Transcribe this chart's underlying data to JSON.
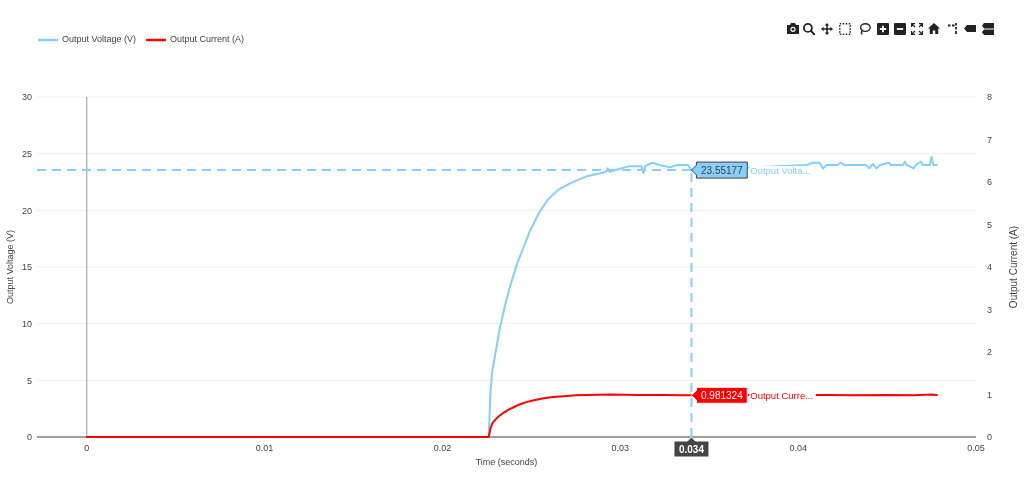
{
  "chart_data": {
    "type": "line",
    "xlabel": "Time (seconds)",
    "ylabel": "Output Voltage (V)",
    "y2label": "Output Current (A)",
    "xlim": [
      -0.0028,
      0.05
    ],
    "xticks": [
      0,
      0.01,
      0.02,
      0.03,
      0.04,
      0.05
    ],
    "ylim": [
      0,
      30
    ],
    "yticks": [
      0,
      5,
      10,
      15,
      20,
      25,
      30
    ],
    "y2lim": [
      0,
      8
    ],
    "y2ticks": [
      0,
      1,
      2,
      3,
      4,
      5,
      6,
      7,
      8
    ],
    "grid": "y",
    "legend": "top left",
    "series": [
      {
        "name": "Output Voltage (V)",
        "color": "#87cefa",
        "x": [
          0,
          0.0226,
          0.0227,
          0.0228,
          0.023,
          0.0232,
          0.0235,
          0.0238,
          0.0242,
          0.0245,
          0.0249,
          0.0254,
          0.0259,
          0.0265,
          0.0272,
          0.0281,
          0.0287,
          0.0292,
          0.0293,
          0.0294,
          0.0305,
          0.0312,
          0.0313,
          0.0314,
          0.0318,
          0.0322,
          0.0328,
          0.0332,
          0.0338,
          0.034,
          0.0405,
          0.0408,
          0.0412,
          0.0414,
          0.0416,
          0.0422,
          0.0424,
          0.0426,
          0.0438,
          0.044,
          0.0442,
          0.0444,
          0.0446,
          0.0451,
          0.0452,
          0.0459,
          0.046,
          0.0461,
          0.0465,
          0.0466,
          0.0469,
          0.047,
          0.0474,
          0.0475,
          0.0476,
          0.0478
        ],
        "values": [
          0,
          0,
          4,
          5.8,
          7.6,
          9.4,
          11.5,
          13.3,
          15.3,
          16.5,
          18.1,
          19.7,
          20.9,
          21.8,
          22.4,
          23,
          23.2,
          23.4,
          23.7,
          23.4,
          23.9,
          23.9,
          23.3,
          23.9,
          24.2,
          24,
          23.8,
          24,
          24,
          23.55177,
          24,
          24.2,
          24.2,
          23.7,
          24,
          24,
          24.2,
          24,
          24,
          23.7,
          24.1,
          23.7,
          24,
          24.2,
          24,
          24,
          24.3,
          24,
          23.7,
          24,
          24.3,
          24,
          24,
          24.7,
          24,
          24
        ],
        "value_labels": [
          null,
          null,
          null,
          null,
          null,
          null,
          null,
          null,
          null,
          null,
          null,
          null,
          null,
          null,
          null,
          null,
          null,
          null,
          null,
          null,
          null,
          null,
          null,
          null,
          null,
          null,
          null,
          null,
          null,
          "23.55177",
          null,
          null,
          null,
          null,
          null,
          null,
          null,
          null,
          null,
          null,
          null,
          null,
          null,
          null,
          null,
          null,
          null,
          null,
          null,
          null,
          null,
          null,
          null,
          null,
          null,
          null
        ]
      },
      {
        "name": "Output Current (A)",
        "color": "#ff0000",
        "axis": "y2",
        "x": [
          0,
          0.0226,
          0.0227,
          0.0228,
          0.023,
          0.0232,
          0.0234,
          0.0237,
          0.024,
          0.0243,
          0.0247,
          0.0252,
          0.0257,
          0.0262,
          0.0268,
          0.0275,
          0.0281,
          0.0294,
          0.031,
          0.0325,
          0.0334,
          0.034,
          0.0416,
          0.043,
          0.045,
          0.0465,
          0.0475,
          0.0478
        ],
        "values": [
          0,
          0,
          0.2,
          0.32,
          0.42,
          0.5,
          0.56,
          0.64,
          0.7,
          0.76,
          0.82,
          0.87,
          0.91,
          0.94,
          0.96,
          0.98,
          0.99,
          1,
          0.99,
          0.99,
          0.98,
          0.981324,
          0.99,
          0.98,
          0.99,
          0.98,
          1,
          0.99
        ],
        "value_labels": [
          null,
          null,
          null,
          null,
          null,
          null,
          null,
          null,
          null,
          null,
          null,
          null,
          null,
          null,
          null,
          null,
          null,
          null,
          null,
          null,
          null,
          "0.981324",
          null,
          null,
          null,
          null,
          null,
          null
        ]
      }
    ],
    "ref_lines": [
      {
        "axis": "x",
        "value": 0,
        "color": "#999999"
      },
      {
        "axis": "x",
        "value": 0.034,
        "label": "0.034",
        "color": "#87cefa",
        "line_style": "dashed"
      },
      {
        "axis": "y",
        "value": 23.55177,
        "color": "#87cefa",
        "line_style": "dashed"
      }
    ],
    "annotations": [
      "Output Volta...",
      "Output Curre..."
    ]
  }
}
